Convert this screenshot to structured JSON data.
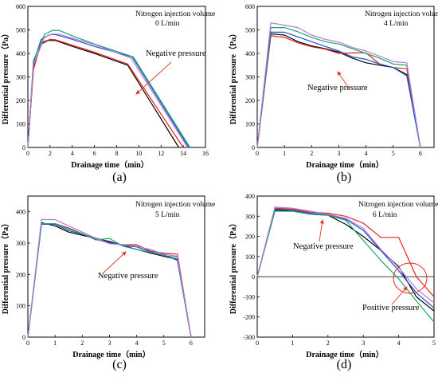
{
  "colors": {
    "black": "#000000",
    "red": "#e8241c",
    "blue": "#1f4fcc",
    "green": "#1aa56e",
    "purple": "#b478d6",
    "arrow": "#e23a2a",
    "circle": "#e8241c"
  },
  "chart_data": [
    {
      "id": "a",
      "caption": "(a)",
      "type": "line",
      "xlabel": "Drainage time（min）",
      "ylabel": "Differential pressure（Pa）",
      "xlim": [
        0,
        16
      ],
      "ylim": [
        0,
        600
      ],
      "xticks": [
        0,
        2,
        4,
        6,
        8,
        10,
        12,
        14,
        16
      ],
      "yticks": [
        0,
        100,
        200,
        300,
        400,
        500,
        600
      ],
      "annotations": [
        "Nitrogen injection volume",
        "0 L/min",
        "Negative pressure"
      ],
      "series": [
        {
          "color": "black",
          "points": [
            [
              0,
              0
            ],
            [
              0.5,
              340
            ],
            [
              1.2,
              440
            ],
            [
              1.8,
              455
            ],
            [
              2.5,
              455
            ],
            [
              4,
              430
            ],
            [
              6,
              400
            ],
            [
              9,
              350
            ],
            [
              13.6,
              0
            ]
          ]
        },
        {
          "color": "red",
          "points": [
            [
              0,
              0
            ],
            [
              0.5,
              330
            ],
            [
              1.2,
              445
            ],
            [
              2,
              460
            ],
            [
              2.5,
              458
            ],
            [
              4,
              435
            ],
            [
              6,
              405
            ],
            [
              9,
              355
            ],
            [
              14,
              0
            ]
          ]
        },
        {
          "color": "blue",
          "points": [
            [
              0,
              0
            ],
            [
              0.5,
              360
            ],
            [
              1.2,
              460
            ],
            [
              2,
              480
            ],
            [
              2.5,
              480
            ],
            [
              4,
              460
            ],
            [
              6,
              430
            ],
            [
              9.4,
              385
            ],
            [
              14.5,
              0
            ]
          ]
        },
        {
          "color": "green",
          "points": [
            [
              0,
              0
            ],
            [
              0.5,
              370
            ],
            [
              1.5,
              480
            ],
            [
              2.2,
              498
            ],
            [
              2.8,
              498
            ],
            [
              4,
              475
            ],
            [
              6,
              440
            ],
            [
              9.5,
              385
            ],
            [
              14.6,
              0
            ]
          ]
        },
        {
          "color": "purple",
          "points": [
            [
              0,
              0
            ],
            [
              0.5,
              350
            ],
            [
              1.5,
              470
            ],
            [
              2.2,
              482
            ],
            [
              2.8,
              482
            ],
            [
              4,
              465
            ],
            [
              6,
              438
            ],
            [
              9.3,
              380
            ],
            [
              14.4,
              0
            ]
          ]
        }
      ]
    },
    {
      "id": "b",
      "caption": "(b)",
      "type": "line",
      "xlabel": "Drainage time（min）",
      "ylabel": "Differential pressure（Pa）",
      "xlim": [
        0,
        6.5
      ],
      "ylim": [
        0,
        600
      ],
      "xticks": [
        0,
        1,
        2,
        3,
        4,
        5,
        6
      ],
      "yticks": [
        0,
        100,
        200,
        300,
        400,
        500,
        600
      ],
      "annotations": [
        "Nitrogen injection volume",
        "4 L/min",
        "Negative pressure"
      ],
      "series": [
        {
          "color": "black",
          "points": [
            [
              0,
              0
            ],
            [
              0.5,
              483
            ],
            [
              1,
              478
            ],
            [
              1.5,
              450
            ],
            [
              2,
              432
            ],
            [
              2.5,
              420
            ],
            [
              3,
              405
            ],
            [
              3.5,
              380
            ],
            [
              4,
              360
            ],
            [
              4.5,
              350
            ],
            [
              5,
              340
            ],
            [
              5.5,
              310
            ],
            [
              6,
              0
            ]
          ]
        },
        {
          "color": "red",
          "points": [
            [
              0,
              0
            ],
            [
              0.5,
              475
            ],
            [
              1,
              468
            ],
            [
              1.5,
              445
            ],
            [
              2,
              428
            ],
            [
              2.5,
              418
            ],
            [
              3,
              400
            ],
            [
              3.5,
              402
            ],
            [
              4,
              402
            ],
            [
              4.5,
              355
            ],
            [
              5,
              340
            ],
            [
              5.5,
              335
            ],
            [
              6,
              0
            ]
          ]
        },
        {
          "color": "blue",
          "points": [
            [
              0,
              0
            ],
            [
              0.5,
              490
            ],
            [
              1,
              490
            ],
            [
              1.5,
              470
            ],
            [
              2,
              450
            ],
            [
              2.5,
              430
            ],
            [
              3,
              410
            ],
            [
              3.5,
              385
            ],
            [
              4,
              375
            ],
            [
              4.5,
              355
            ],
            [
              5,
              340
            ],
            [
              5.5,
              305
            ],
            [
              6,
              0
            ]
          ]
        },
        {
          "color": "green",
          "points": [
            [
              0,
              0
            ],
            [
              0.5,
              510
            ],
            [
              1,
              510
            ],
            [
              1.5,
              492
            ],
            [
              2,
              468
            ],
            [
              2.5,
              450
            ],
            [
              3,
              440
            ],
            [
              3.5,
              420
            ],
            [
              4,
              400
            ],
            [
              4.5,
              380
            ],
            [
              5,
              355
            ],
            [
              5.5,
              350
            ],
            [
              6,
              0
            ]
          ]
        },
        {
          "color": "purple",
          "points": [
            [
              0,
              0
            ],
            [
              0.5,
              530
            ],
            [
              1,
              520
            ],
            [
              1.5,
              510
            ],
            [
              2,
              478
            ],
            [
              2.5,
              460
            ],
            [
              3,
              448
            ],
            [
              3.5,
              425
            ],
            [
              4,
              410
            ],
            [
              4.5,
              388
            ],
            [
              5,
              365
            ],
            [
              5.5,
              360
            ],
            [
              6,
              0
            ]
          ]
        }
      ]
    },
    {
      "id": "c",
      "caption": "(c)",
      "type": "line",
      "xlabel": "Drainage time（min）",
      "ylabel": "Differential pressure（Pa）",
      "xlim": [
        0,
        6.5
      ],
      "ylim": [
        0,
        450
      ],
      "xticks": [
        0,
        1,
        2,
        3,
        4,
        5,
        6
      ],
      "yticks": [
        0,
        100,
        200,
        300,
        400
      ],
      "annotations": [
        "Nitrogen injection volume",
        "5 L/min",
        "Negative pressure"
      ],
      "series": [
        {
          "color": "black",
          "points": [
            [
              0,
              0
            ],
            [
              0.5,
              365
            ],
            [
              1,
              355
            ],
            [
              1.5,
              335
            ],
            [
              2,
              325
            ],
            [
              2.5,
              315
            ],
            [
              3,
              305
            ],
            [
              3.5,
              292
            ],
            [
              4,
              280
            ],
            [
              4.5,
              268
            ],
            [
              5,
              258
            ],
            [
              5.5,
              248
            ],
            [
              6,
              0
            ]
          ]
        },
        {
          "color": "red",
          "points": [
            [
              0,
              0
            ],
            [
              0.5,
              362
            ],
            [
              1,
              362
            ],
            [
              1.5,
              348
            ],
            [
              2,
              330
            ],
            [
              2.5,
              312
            ],
            [
              3,
              300
            ],
            [
              3.5,
              295
            ],
            [
              4,
              295
            ],
            [
              4.5,
              275
            ],
            [
              5,
              268
            ],
            [
              5.5,
              265
            ],
            [
              6,
              0
            ]
          ]
        },
        {
          "color": "blue",
          "points": [
            [
              0,
              0
            ],
            [
              0.5,
              360
            ],
            [
              1,
              360
            ],
            [
              1.5,
              340
            ],
            [
              2,
              328
            ],
            [
              2.5,
              316
            ],
            [
              3,
              302
            ],
            [
              3.5,
              292
            ],
            [
              4,
              288
            ],
            [
              4.5,
              272
            ],
            [
              5,
              262
            ],
            [
              5.5,
              245
            ],
            [
              6,
              0
            ]
          ]
        },
        {
          "color": "green",
          "points": [
            [
              0,
              0
            ],
            [
              0.5,
              362
            ],
            [
              1,
              362
            ],
            [
              1.5,
              345
            ],
            [
              2,
              330
            ],
            [
              2.5,
              310
            ],
            [
              3,
              315
            ],
            [
              3.5,
              290
            ],
            [
              4,
              280
            ],
            [
              4.5,
              270
            ],
            [
              5,
              260
            ],
            [
              5.5,
              255
            ],
            [
              6,
              0
            ]
          ]
        },
        {
          "color": "purple",
          "points": [
            [
              0,
              0
            ],
            [
              0.5,
              375
            ],
            [
              1,
              375
            ],
            [
              1.5,
              355
            ],
            [
              2,
              335
            ],
            [
              2.5,
              315
            ],
            [
              3,
              298
            ],
            [
              3.5,
              295
            ],
            [
              4,
              290
            ],
            [
              4.5,
              280
            ],
            [
              5,
              265
            ],
            [
              5.5,
              258
            ],
            [
              6,
              0
            ]
          ]
        }
      ]
    },
    {
      "id": "d",
      "caption": "(d)",
      "type": "line",
      "xlabel": "Drainage time（min）",
      "ylabel": "Differential pressure（Pa）",
      "xlim": [
        0,
        5
      ],
      "ylim": [
        -300,
        400
      ],
      "xticks": [
        0,
        1,
        2,
        3,
        4,
        5
      ],
      "yticks": [
        -300,
        -200,
        -100,
        0,
        100,
        200,
        300,
        400
      ],
      "annotations": [
        "Nitrogen injection volume",
        "6 L/min",
        "Negative pressure",
        "Positive pressure"
      ],
      "series": [
        {
          "color": "black",
          "points": [
            [
              0,
              0
            ],
            [
              0.5,
              330
            ],
            [
              1,
              328
            ],
            [
              1.5,
              310
            ],
            [
              2,
              305
            ],
            [
              2.5,
              260
            ],
            [
              3,
              200
            ],
            [
              3.5,
              130
            ],
            [
              4,
              50
            ],
            [
              4.5,
              -100
            ],
            [
              5,
              -170
            ]
          ]
        },
        {
          "color": "red",
          "points": [
            [
              0,
              0
            ],
            [
              0.5,
              340
            ],
            [
              1,
              335
            ],
            [
              1.5,
              320
            ],
            [
              2,
              315
            ],
            [
              2.5,
              300
            ],
            [
              3,
              265
            ],
            [
              3.5,
              195
            ],
            [
              4,
              195
            ],
            [
              4.5,
              0
            ],
            [
              5,
              -100
            ]
          ]
        },
        {
          "color": "blue",
          "points": [
            [
              0,
              0
            ],
            [
              0.5,
              335
            ],
            [
              1,
              330
            ],
            [
              1.5,
              315
            ],
            [
              2,
              308
            ],
            [
              2.5,
              285
            ],
            [
              3,
              230
            ],
            [
              3.5,
              130
            ],
            [
              4,
              30
            ],
            [
              4.5,
              -80
            ],
            [
              5,
              -155
            ]
          ]
        },
        {
          "color": "green",
          "points": [
            [
              0,
              0
            ],
            [
              0.5,
              325
            ],
            [
              1,
              325
            ],
            [
              1.5,
              310
            ],
            [
              2,
              305
            ],
            [
              2.5,
              280
            ],
            [
              3,
              180
            ],
            [
              3.5,
              80
            ],
            [
              4,
              -10
            ],
            [
              4.5,
              -120
            ],
            [
              5,
              -225
            ]
          ]
        },
        {
          "color": "purple",
          "points": [
            [
              0,
              0
            ],
            [
              0.5,
              345
            ],
            [
              1,
              340
            ],
            [
              1.5,
              325
            ],
            [
              2,
              310
            ],
            [
              2.5,
              290
            ],
            [
              3,
              240
            ],
            [
              3.5,
              135
            ],
            [
              4,
              45
            ],
            [
              4.5,
              -60
            ],
            [
              5,
              -130
            ]
          ]
        }
      ]
    }
  ]
}
